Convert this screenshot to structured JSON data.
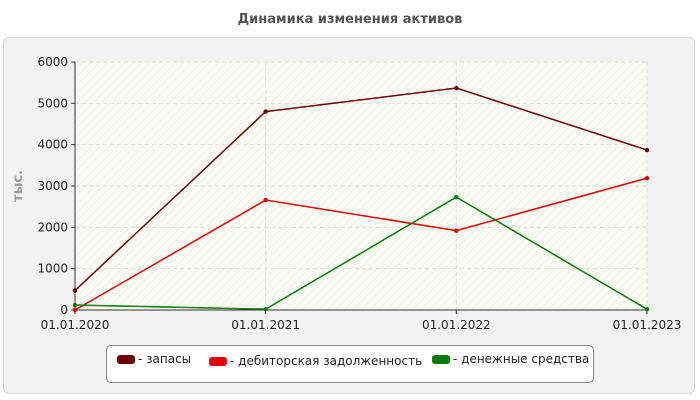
{
  "chart_data": {
    "type": "line",
    "title": "Динамика изменения активов",
    "ylabel": "тыс.",
    "xlabel": "",
    "categories": [
      "01.01.2020",
      "01.01.2021",
      "01.01.2022",
      "01.01.2023"
    ],
    "ylim": [
      0,
      6000
    ],
    "yticks": [
      0,
      1000,
      2000,
      3000,
      4000,
      5000,
      6000
    ],
    "grid": true,
    "legend_position": "bottom",
    "series": [
      {
        "name": "- запасы",
        "color": "#6b0000",
        "values": [
          470,
          4800,
          5370,
          3870
        ]
      },
      {
        "name": "- дебиторская задолженность",
        "color": "#e00000",
        "values": [
          0,
          2660,
          1920,
          3190
        ]
      },
      {
        "name": "- денежные средства",
        "color": "#007a00",
        "values": [
          120,
          20,
          2730,
          20
        ]
      }
    ]
  }
}
